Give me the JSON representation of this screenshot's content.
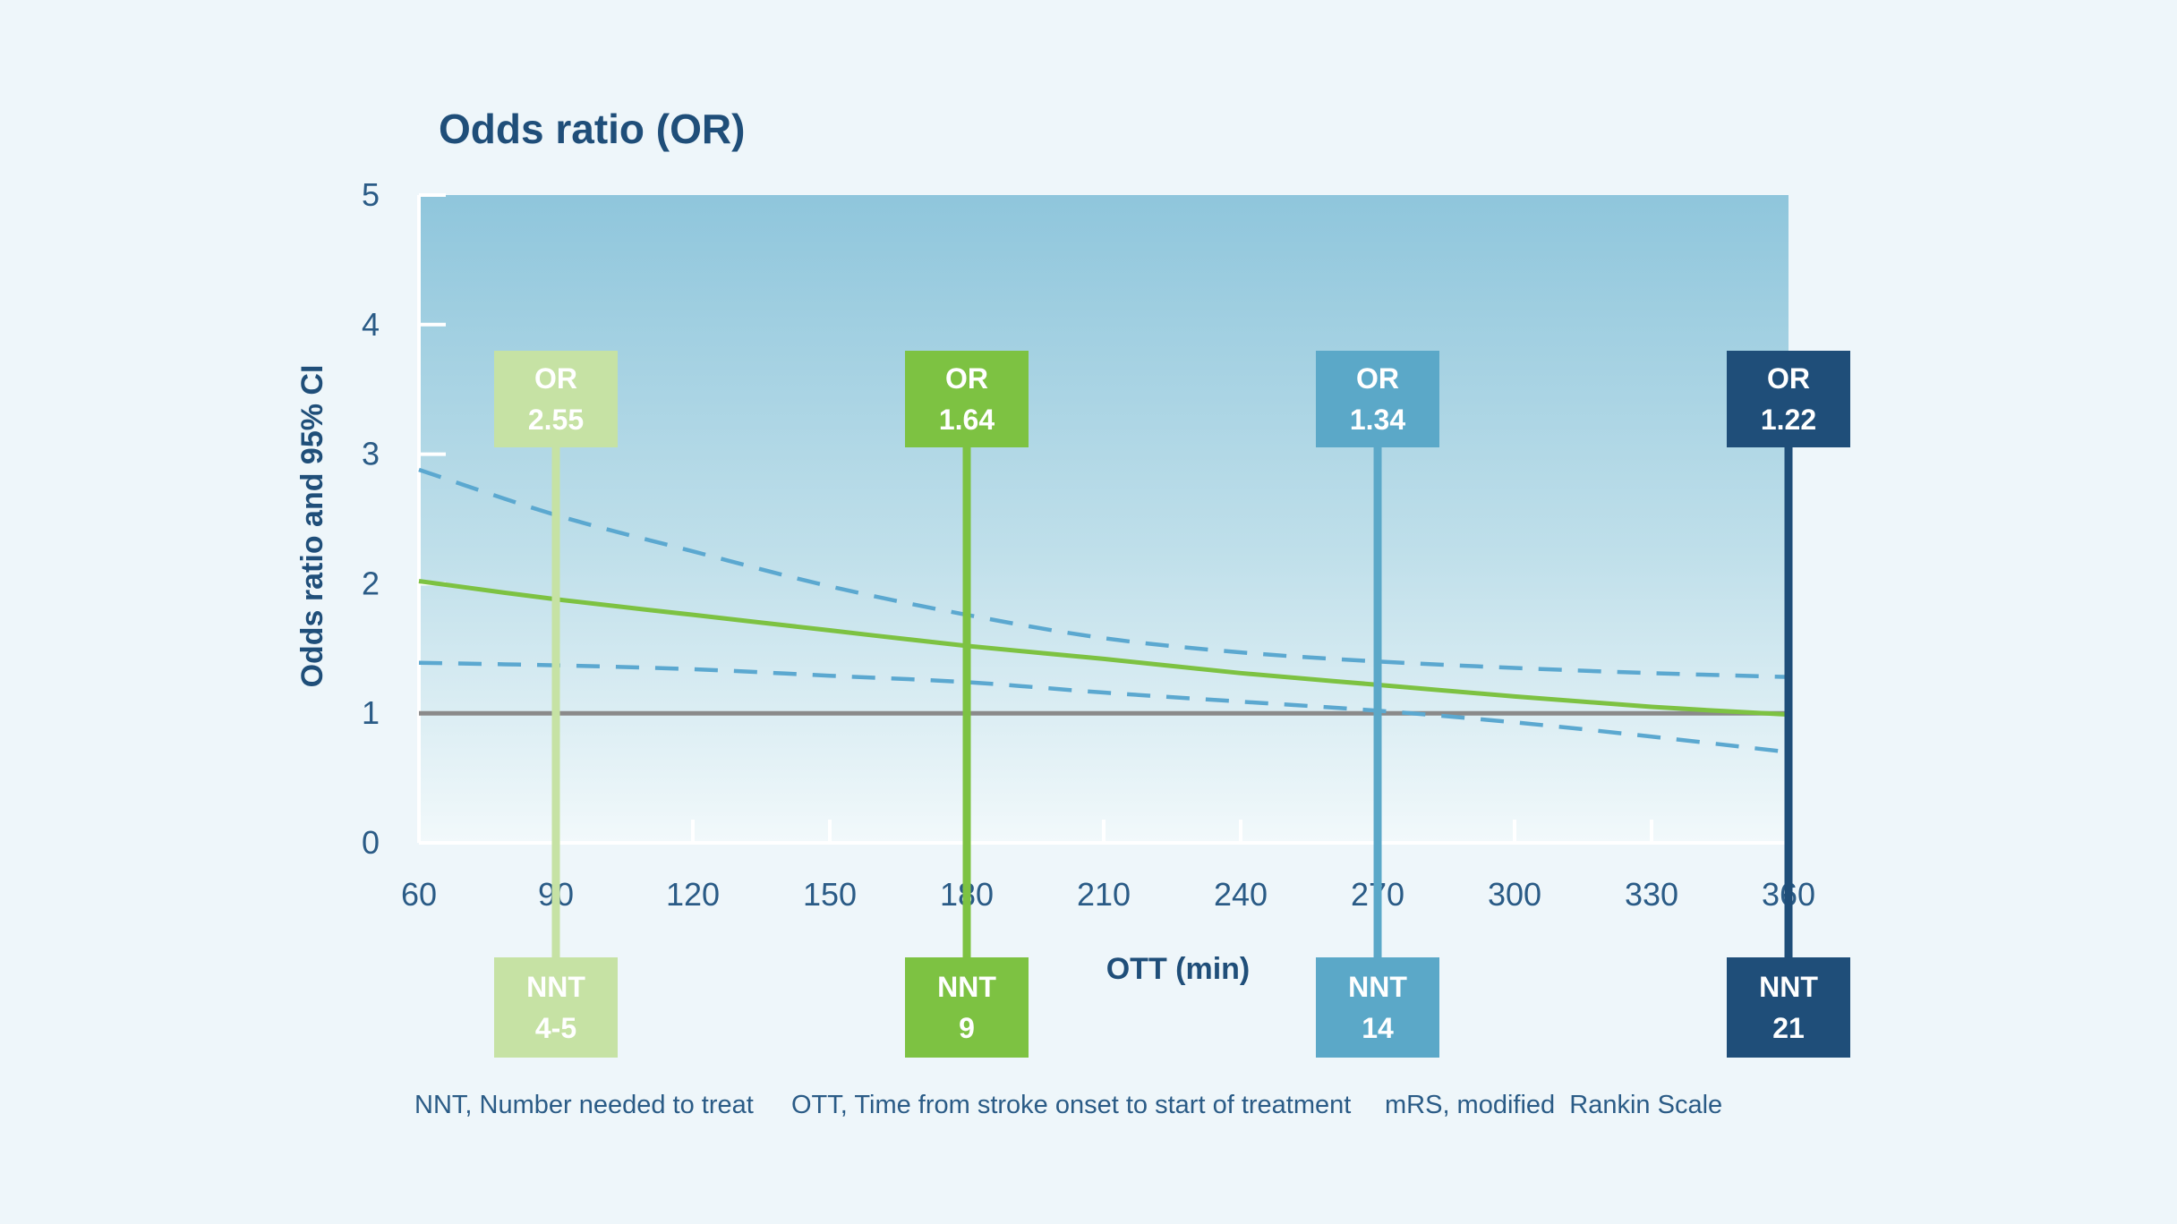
{
  "chart_data": {
    "type": "line",
    "title": "Odds ratio (OR)",
    "xlabel": "OTT (min)",
    "ylabel": "Odds ratio and 95% CI",
    "xlim": [
      60,
      360
    ],
    "ylim": [
      0,
      5
    ],
    "x_ticks": [
      60,
      90,
      120,
      150,
      180,
      210,
      240,
      270,
      300,
      330,
      360
    ],
    "y_ticks": [
      0,
      1,
      2,
      3,
      4,
      5
    ],
    "reference_line": 1,
    "series": [
      {
        "name": "OR",
        "style": "solid",
        "color": "#7dc242",
        "x": [
          60,
          90,
          120,
          150,
          180,
          210,
          240,
          270,
          300,
          330,
          360
        ],
        "y": [
          2.02,
          1.88,
          1.76,
          1.64,
          1.52,
          1.42,
          1.31,
          1.22,
          1.13,
          1.05,
          0.99
        ]
      },
      {
        "name": "Upper 95% CI",
        "style": "dashed",
        "color": "#5ba8d0",
        "x": [
          60,
          90,
          120,
          150,
          180,
          210,
          240,
          270,
          300,
          330,
          360
        ],
        "y": [
          2.88,
          2.53,
          2.25,
          1.98,
          1.76,
          1.58,
          1.47,
          1.4,
          1.35,
          1.31,
          1.28
        ]
      },
      {
        "name": "Lower 95% CI",
        "style": "dashed",
        "color": "#5ba8d0",
        "x": [
          60,
          90,
          120,
          150,
          180,
          210,
          240,
          270,
          300,
          330,
          360
        ],
        "y": [
          1.39,
          1.37,
          1.34,
          1.29,
          1.24,
          1.16,
          1.09,
          1.02,
          0.93,
          0.82,
          0.7
        ]
      }
    ],
    "markers": [
      {
        "x": 90,
        "or_label": "OR",
        "or_value": "2.55",
        "nnt_label": "NNT",
        "nnt_value": "4-5",
        "color": "#c6e2a4"
      },
      {
        "x": 180,
        "or_label": "OR",
        "or_value": "1.64",
        "nnt_label": "NNT",
        "nnt_value": "9",
        "color": "#7dc242"
      },
      {
        "x": 270,
        "or_label": "OR",
        "or_value": "1.34",
        "nnt_label": "NNT",
        "nnt_value": "14",
        "color": "#5ba8c8"
      },
      {
        "x": 360,
        "or_label": "OR",
        "or_value": "1.22",
        "nnt_label": "NNT",
        "nnt_value": "21",
        "color": "#1f4e79"
      }
    ]
  },
  "footnotes": {
    "nnt": "NNT, Number needed to treat",
    "ott": "OTT, Time from stroke onset to start of treatment",
    "mrs": "mRS, modified  Rankin Scale"
  }
}
